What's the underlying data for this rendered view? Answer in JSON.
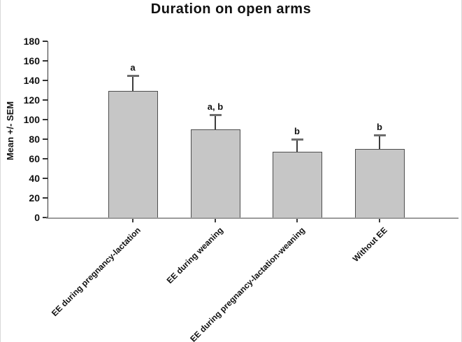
{
  "figure": {
    "title": "Duration on open arms"
  },
  "chart_data": {
    "type": "bar",
    "title": "Duration on open arms",
    "xlabel": "",
    "ylabel": "Mean +/- SEM",
    "categories": [
      "EE during pregnancy-lactation",
      "EE during weaning",
      "EE during pregnancy-lactation-weaning",
      "Without EE"
    ],
    "values": [
      129,
      90,
      67,
      70
    ],
    "sem": [
      16,
      15,
      13,
      14
    ],
    "sig_labels": [
      "a",
      "a, b",
      "b",
      "b"
    ],
    "ylim": [
      0,
      180
    ],
    "ytick_step": 20,
    "grid": false,
    "legend": "none",
    "bar_fill": "#c6c6c6",
    "bar_border": "#4d4d4d",
    "error_color": "#3c3c3c",
    "cap_color": "#6e6e6e",
    "axis_color": "#333333",
    "baseline_color": "#9c9c9c",
    "text_color": "#111111"
  }
}
